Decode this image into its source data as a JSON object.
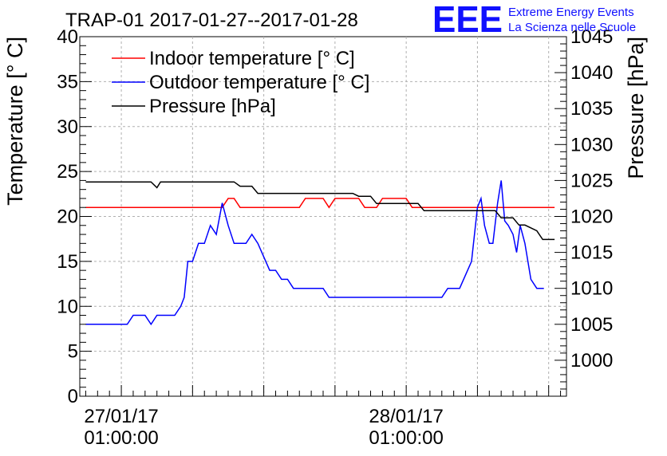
{
  "chart_data": {
    "type": "line",
    "title": "TRAP-01 2017-01-27--2017-01-28",
    "ylabel_left": "Temperature [° C]",
    "ylabel_right": "Pressure [hPa]",
    "ylim_left": [
      0,
      40
    ],
    "ylim_right": [
      995,
      1045
    ],
    "yticks_left": [
      "0",
      "5",
      "10",
      "15",
      "20",
      "25",
      "30",
      "35",
      "40"
    ],
    "yticks_right": [
      "1000",
      "1005",
      "1010",
      "1015",
      "1020",
      "1025",
      "1030",
      "1035",
      "1040",
      "1045"
    ],
    "xlim_hours": [
      -3.5,
      37.5
    ],
    "x_unit": "hours since 27/01/17 01:00:00",
    "xticks": [
      {
        "hour": 0,
        "date": "27/01/17",
        "time": "01:00:00"
      },
      {
        "hour": 24,
        "date": "28/01/17",
        "time": "01:00:00"
      }
    ],
    "grid": true,
    "legend_position": "top-left",
    "series": [
      {
        "name": "Indoor temperature [° C]",
        "axis": "left",
        "color": "#ff0000",
        "points": [
          [
            -3.0,
            21
          ],
          [
            8.5,
            21
          ],
          [
            9.0,
            22
          ],
          [
            9.5,
            22
          ],
          [
            10.0,
            21
          ],
          [
            15.0,
            21
          ],
          [
            15.5,
            22
          ],
          [
            17.0,
            22
          ],
          [
            17.5,
            21
          ],
          [
            18.0,
            22
          ],
          [
            20.0,
            22
          ],
          [
            20.5,
            21
          ],
          [
            21.5,
            21
          ],
          [
            22.0,
            22
          ],
          [
            24.0,
            22
          ],
          [
            24.5,
            21
          ],
          [
            36.5,
            21
          ]
        ]
      },
      {
        "name": "Outdoor temperature [° C]",
        "axis": "left",
        "color": "#0000ff",
        "points": [
          [
            -3.0,
            8
          ],
          [
            0.5,
            8
          ],
          [
            1.0,
            9
          ],
          [
            2.0,
            9
          ],
          [
            2.5,
            8
          ],
          [
            3.0,
            9
          ],
          [
            4.5,
            9
          ],
          [
            5.0,
            10
          ],
          [
            5.3,
            11
          ],
          [
            5.6,
            15
          ],
          [
            6.0,
            15
          ],
          [
            6.5,
            17
          ],
          [
            7.0,
            17
          ],
          [
            7.5,
            19
          ],
          [
            8.0,
            18
          ],
          [
            8.5,
            21.5
          ],
          [
            9.0,
            19
          ],
          [
            9.5,
            17
          ],
          [
            10.5,
            17
          ],
          [
            11.0,
            18
          ],
          [
            11.5,
            17
          ],
          [
            12.0,
            15.5
          ],
          [
            12.5,
            14
          ],
          [
            13.0,
            14
          ],
          [
            13.5,
            13
          ],
          [
            14.0,
            13
          ],
          [
            14.5,
            12
          ],
          [
            17.0,
            12
          ],
          [
            17.5,
            11
          ],
          [
            27.0,
            11
          ],
          [
            27.5,
            12
          ],
          [
            28.5,
            12
          ],
          [
            29.5,
            15
          ],
          [
            30.0,
            21
          ],
          [
            30.3,
            22
          ],
          [
            30.6,
            19
          ],
          [
            31.0,
            17
          ],
          [
            31.3,
            17
          ],
          [
            31.7,
            21.5
          ],
          [
            32.0,
            24
          ],
          [
            32.3,
            19.5
          ],
          [
            32.6,
            19
          ],
          [
            33.0,
            18
          ],
          [
            33.3,
            16
          ],
          [
            33.6,
            19
          ],
          [
            34.0,
            17
          ],
          [
            34.5,
            13
          ],
          [
            35.0,
            12
          ],
          [
            35.6,
            12
          ]
        ]
      },
      {
        "name": "Pressure [hPa]",
        "axis": "right",
        "color": "#000000",
        "points": [
          [
            -3.0,
            1024.8
          ],
          [
            2.5,
            1024.8
          ],
          [
            3.0,
            1024.0
          ],
          [
            3.3,
            1024.8
          ],
          [
            9.5,
            1024.8
          ],
          [
            10.0,
            1024.2
          ],
          [
            11.0,
            1024.2
          ],
          [
            11.5,
            1023.2
          ],
          [
            19.5,
            1023.2
          ],
          [
            20.0,
            1022.8
          ],
          [
            21.0,
            1022.8
          ],
          [
            21.5,
            1021.8
          ],
          [
            25.0,
            1021.8
          ],
          [
            25.5,
            1020.8
          ],
          [
            31.5,
            1020.8
          ],
          [
            32.0,
            1019.8
          ],
          [
            33.0,
            1019.8
          ],
          [
            33.5,
            1018.8
          ],
          [
            34.0,
            1018.8
          ],
          [
            35.0,
            1018.0
          ],
          [
            35.5,
            1016.8
          ],
          [
            36.5,
            1016.8
          ]
        ]
      }
    ]
  },
  "logo": {
    "mark": "EEE",
    "line1": "Extreme Energy Events",
    "line2": "La Scienza nelle Scuole"
  }
}
